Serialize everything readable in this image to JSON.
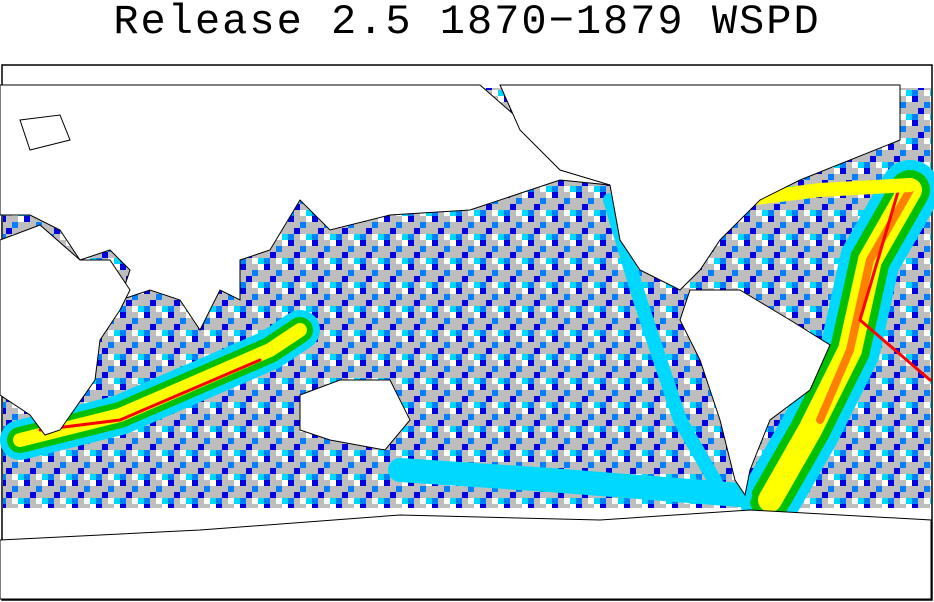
{
  "header": {
    "title": "Release 2.5 1870−1879 WSPD"
  }
}
